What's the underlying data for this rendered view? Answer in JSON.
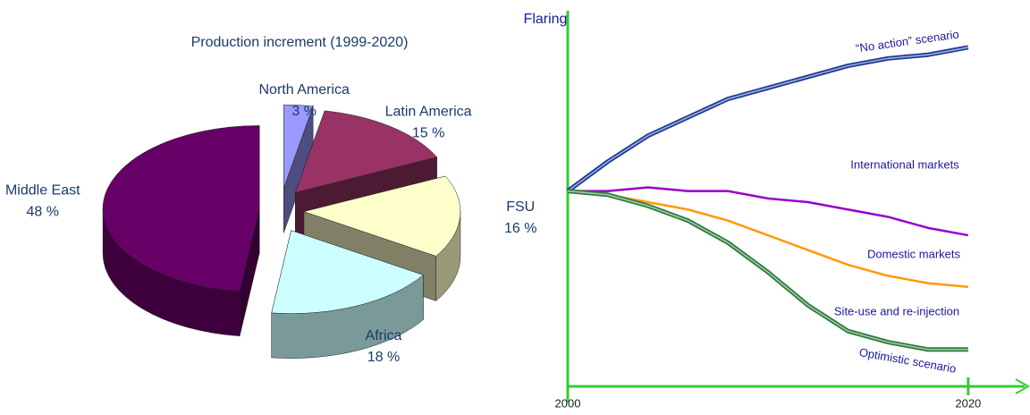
{
  "chart_data": [
    {
      "type": "pie",
      "title": "Production increment (1999-2020)",
      "categories": [
        "North America",
        "Latin America",
        "FSU",
        "Africa",
        "Middle East"
      ],
      "values": [
        3,
        15,
        16,
        18,
        48
      ],
      "value_labels": [
        "3 %",
        "15 %",
        "16 %",
        "18 %",
        "48 %"
      ],
      "colors": [
        "#9999ff",
        "#993366",
        "#ffffcc",
        "#ccffff",
        "#660066"
      ]
    },
    {
      "type": "line",
      "y_label": "Flaring",
      "x": [
        2000,
        2002,
        2004,
        2006,
        2008,
        2010,
        2012,
        2014,
        2016,
        2018,
        2020
      ],
      "xlim": [
        2000,
        2023
      ],
      "xticks": [
        2000,
        2020
      ],
      "ylim": [
        0,
        100
      ],
      "axis_color": "#33cc33",
      "series": [
        {
          "name": "“No action” scenario",
          "color": "#1f3a93",
          "values": [
            53,
            61,
            68,
            73,
            78,
            81,
            84,
            87,
            89,
            90,
            92
          ]
        },
        {
          "color": "#9900cc",
          "values": [
            53,
            53,
            54,
            53,
            53,
            51,
            50,
            48,
            46,
            43,
            41
          ]
        },
        {
          "color": "#ff9900",
          "values": [
            53,
            52,
            50,
            48,
            45,
            41,
            37,
            33,
            30,
            28,
            27
          ]
        },
        {
          "name": "Optimistic scenario",
          "color": "#2e7d32",
          "values": [
            53,
            52,
            49,
            45,
            39,
            31,
            22,
            15,
            12,
            10,
            10
          ]
        }
      ],
      "annotations": [
        "International markets",
        "Domestic markets",
        "Site-use and re-injection"
      ]
    }
  ]
}
